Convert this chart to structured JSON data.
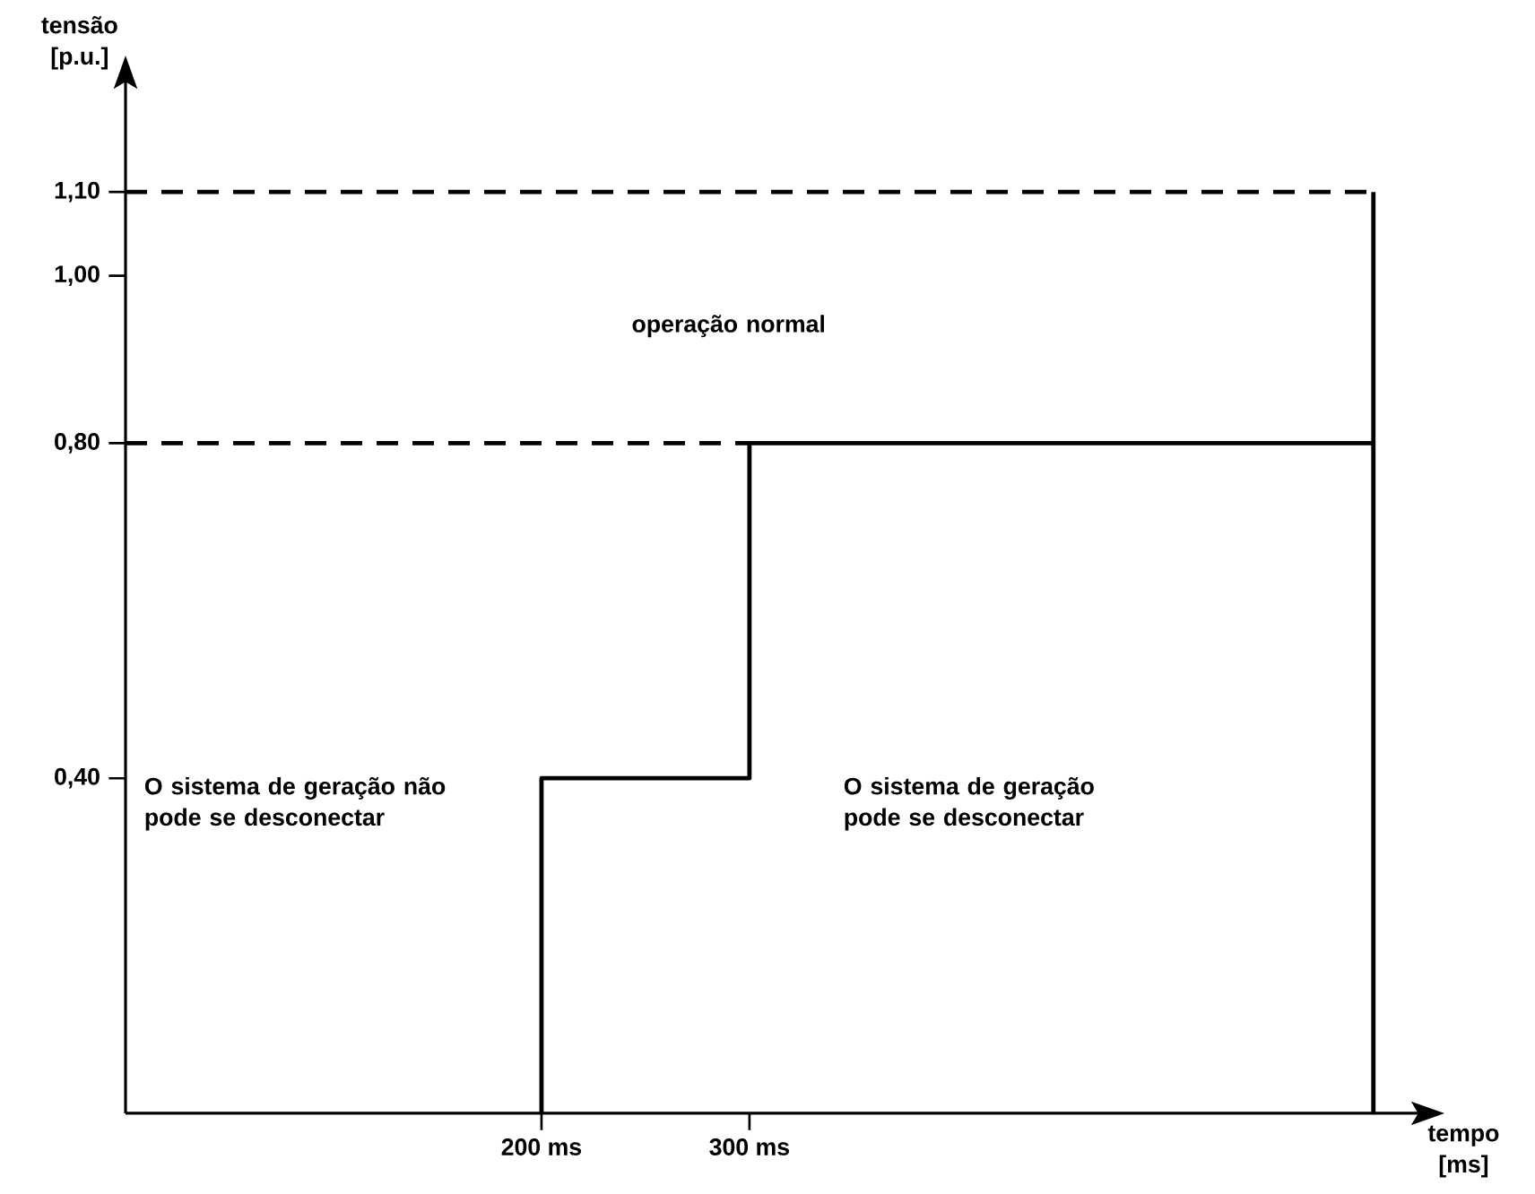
{
  "chart_data": {
    "type": "line",
    "xlabel": "tempo [ms]",
    "ylabel": "tensão [p.u.]",
    "xlim": [
      0,
      625
    ],
    "ylim": [
      0,
      1.24
    ],
    "xticks": [
      {
        "value": 200,
        "label": "200 ms"
      },
      {
        "value": 300,
        "label": "300 ms"
      }
    ],
    "yticks": [
      {
        "value": 0.4,
        "label": "0,40"
      },
      {
        "value": 0.8,
        "label": "0,80"
      },
      {
        "value": 1.0,
        "label": "1,00"
      },
      {
        "value": 1.1,
        "label": "1,10"
      }
    ],
    "series": [
      {
        "color": "#000000",
        "line_style": "solid",
        "x": [
          200,
          200,
          300,
          300,
          600,
          600
        ],
        "values": [
          0,
          0.4,
          0.4,
          0.8,
          0.8,
          0
        ]
      },
      {
        "color": "#000000",
        "line_style": "solid",
        "x": [
          600,
          600
        ],
        "values": [
          0.8,
          1.1
        ]
      },
      {
        "color": "#000000",
        "line_style": "dashed",
        "x": [
          0,
          600
        ],
        "values": [
          1.1,
          1.1
        ]
      },
      {
        "color": "#000000",
        "line_style": "dashed",
        "x": [
          0,
          300
        ],
        "values": [
          0.8,
          0.8
        ]
      }
    ],
    "annotations": [
      "operação normal",
      "O sistema de geração não pode se desconectar",
      "O sistema de geração pode se desconectar"
    ],
    "grid": false
  }
}
